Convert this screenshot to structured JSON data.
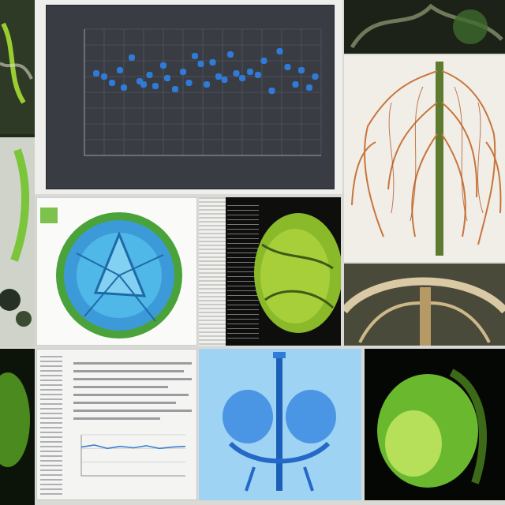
{
  "collage": {
    "panels": [
      {
        "id": "scatter-plot",
        "kind": "scatter chart on dark background"
      },
      {
        "id": "nerve-anatomy",
        "kind": "branching orange vessel illustration"
      },
      {
        "id": "blue-sphere",
        "kind": "blue-green spherical cell"
      },
      {
        "id": "green-organ",
        "kind": "green 3D organ render"
      },
      {
        "id": "ribcage-render",
        "kind": "sepia ribcage structure"
      },
      {
        "id": "blue-vessels",
        "kind": "blue translucent vascular render"
      },
      {
        "id": "green-head",
        "kind": "green glowing head model"
      }
    ],
    "colors": {
      "background": "#d9d9d6",
      "dark_panel": "#3a3c44",
      "point_blue": "#2f7bd8",
      "green": "#6ab82e",
      "orange": "#c8753a",
      "light_blue": "#9fd3f3"
    }
  },
  "chart_data": [
    {
      "type": "scatter",
      "xlim": [
        0,
        12
      ],
      "ylim": [
        0,
        8
      ],
      "grid": true,
      "points": [
        {
          "x": 0.6,
          "y": 5.2
        },
        {
          "x": 1.0,
          "y": 5.0
        },
        {
          "x": 1.4,
          "y": 4.6
        },
        {
          "x": 1.8,
          "y": 5.4
        },
        {
          "x": 2.0,
          "y": 4.3
        },
        {
          "x": 2.4,
          "y": 6.2
        },
        {
          "x": 2.8,
          "y": 4.7
        },
        {
          "x": 3.0,
          "y": 4.5
        },
        {
          "x": 3.3,
          "y": 5.1
        },
        {
          "x": 3.6,
          "y": 4.4
        },
        {
          "x": 4.0,
          "y": 5.7
        },
        {
          "x": 4.2,
          "y": 4.9
        },
        {
          "x": 4.6,
          "y": 4.2
        },
        {
          "x": 5.0,
          "y": 5.3
        },
        {
          "x": 5.3,
          "y": 4.6
        },
        {
          "x": 5.6,
          "y": 6.3
        },
        {
          "x": 5.9,
          "y": 5.8
        },
        {
          "x": 6.2,
          "y": 4.5
        },
        {
          "x": 6.5,
          "y": 5.9
        },
        {
          "x": 6.8,
          "y": 5.0
        },
        {
          "x": 7.1,
          "y": 4.8
        },
        {
          "x": 7.4,
          "y": 6.4
        },
        {
          "x": 7.7,
          "y": 5.2
        },
        {
          "x": 8.0,
          "y": 4.9
        },
        {
          "x": 8.4,
          "y": 5.3
        },
        {
          "x": 8.8,
          "y": 5.1
        },
        {
          "x": 9.1,
          "y": 6.0
        },
        {
          "x": 9.5,
          "y": 4.1
        },
        {
          "x": 9.9,
          "y": 6.6
        },
        {
          "x": 10.3,
          "y": 5.6
        },
        {
          "x": 10.7,
          "y": 4.5
        },
        {
          "x": 11.0,
          "y": 5.4
        },
        {
          "x": 11.4,
          "y": 4.3
        },
        {
          "x": 11.7,
          "y": 5.0
        }
      ]
    },
    {
      "type": "line",
      "x": [
        0,
        1,
        2,
        3,
        4,
        5,
        6,
        7,
        8
      ],
      "values": [
        4.2,
        4.5,
        4.0,
        4.3,
        4.1,
        4.4,
        4.0,
        4.2,
        4.3
      ],
      "ylim": [
        0,
        6
      ],
      "grid": true
    }
  ]
}
